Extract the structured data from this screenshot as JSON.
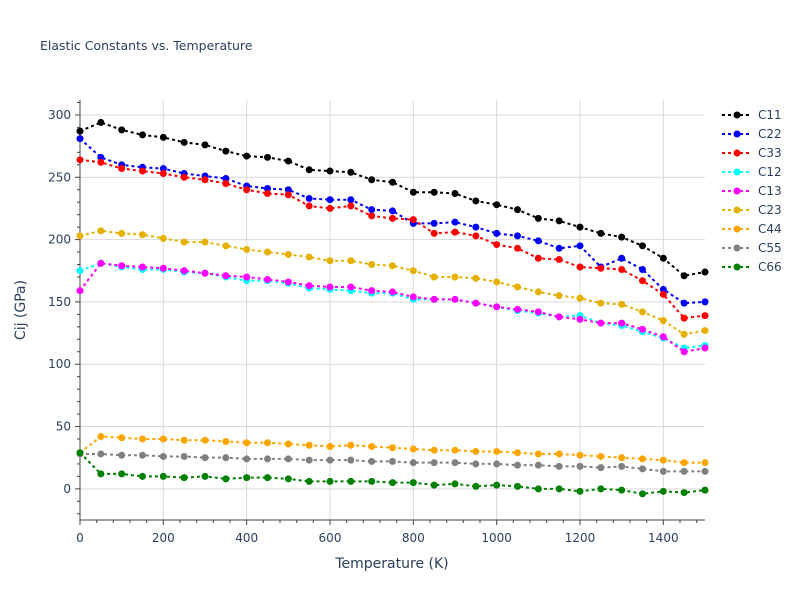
{
  "chart_data": {
    "type": "line",
    "title": "Elastic Constants vs. Temperature",
    "xlabel": "Temperature (K)",
    "ylabel": "Cij (GPa)",
    "xlim": [
      0,
      1500
    ],
    "ylim": [
      -25,
      312
    ],
    "xticks": [
      0,
      200,
      400,
      600,
      800,
      1000,
      1200,
      1400
    ],
    "yticks": [
      0,
      50,
      100,
      150,
      200,
      250,
      300
    ],
    "grid": true,
    "legend_position": "right",
    "x": [
      0,
      50,
      100,
      150,
      200,
      250,
      300,
      350,
      400,
      450,
      500,
      550,
      600,
      650,
      700,
      750,
      800,
      850,
      900,
      950,
      1000,
      1050,
      1100,
      1150,
      1200,
      1250,
      1300,
      1350,
      1400,
      1450,
      1500
    ],
    "series": [
      {
        "name": "C11",
        "color": "#000000",
        "values": [
          287,
          294,
          288,
          284,
          282,
          278,
          276,
          271,
          267,
          266,
          263,
          256,
          255,
          254,
          248,
          246,
          238,
          238,
          237,
          231,
          228,
          224,
          217,
          215,
          210,
          205,
          202,
          195,
          185,
          171,
          174
        ]
      },
      {
        "name": "C22",
        "color": "#0000ff",
        "values": [
          281,
          266,
          260,
          258,
          257,
          253,
          251,
          249,
          243,
          241,
          240,
          233,
          232,
          232,
          224,
          223,
          213,
          213,
          214,
          210,
          205,
          203,
          199,
          193,
          195,
          178,
          185,
          176,
          160,
          149,
          150
        ]
      },
      {
        "name": "C33",
        "color": "#ff0000",
        "values": [
          264,
          262,
          257,
          255,
          253,
          250,
          248,
          245,
          240,
          237,
          236,
          227,
          225,
          227,
          219,
          217,
          216,
          205,
          206,
          203,
          196,
          193,
          185,
          184,
          178,
          177,
          176,
          167,
          156,
          137,
          139
        ]
      },
      {
        "name": "C12",
        "color": "#00ffff",
        "values": [
          175,
          181,
          178,
          176,
          176,
          174,
          173,
          170,
          167,
          167,
          165,
          161,
          160,
          159,
          157,
          157,
          152,
          152,
          152,
          149,
          146,
          143,
          141,
          138,
          139,
          133,
          131,
          126,
          121,
          113,
          115
        ]
      },
      {
        "name": "C13",
        "color": "#ff00ff",
        "values": [
          159,
          181,
          179,
          178,
          177,
          175,
          173,
          171,
          170,
          168,
          166,
          163,
          162,
          162,
          159,
          158,
          154,
          152,
          152,
          149,
          146,
          144,
          142,
          138,
          136,
          133,
          133,
          128,
          122,
          110,
          113
        ]
      },
      {
        "name": "C23",
        "color": "#e6b000",
        "values": [
          203,
          207,
          205,
          204,
          201,
          198,
          198,
          195,
          192,
          190,
          188,
          186,
          183,
          183,
          180,
          179,
          175,
          170,
          170,
          169,
          166,
          162,
          158,
          155,
          153,
          149,
          148,
          142,
          135,
          124,
          127
        ]
      },
      {
        "name": "C44",
        "color": "#ffa500",
        "values": [
          29,
          42,
          41,
          40,
          40,
          39,
          39,
          38,
          37,
          37,
          36,
          35,
          34,
          35,
          34,
          33,
          32,
          31,
          31,
          30,
          30,
          29,
          28,
          28,
          27,
          26,
          25,
          24,
          23,
          21,
          21
        ]
      },
      {
        "name": "C55",
        "color": "#808080",
        "values": [
          28,
          28,
          27,
          27,
          26,
          26,
          25,
          25,
          24,
          24,
          24,
          23,
          23,
          23,
          22,
          22,
          21,
          21,
          21,
          20,
          20,
          19,
          19,
          18,
          18,
          17,
          18,
          16,
          14,
          14,
          14
        ]
      },
      {
        "name": "C66",
        "color": "#008000",
        "values": [
          29,
          12,
          12,
          10,
          10,
          9,
          10,
          8,
          9,
          9,
          8,
          6,
          6,
          6,
          6,
          5,
          5,
          3,
          4,
          2,
          3,
          2,
          0,
          0,
          -2,
          0,
          -1,
          -4,
          -2,
          -3,
          -1
        ]
      }
    ]
  }
}
